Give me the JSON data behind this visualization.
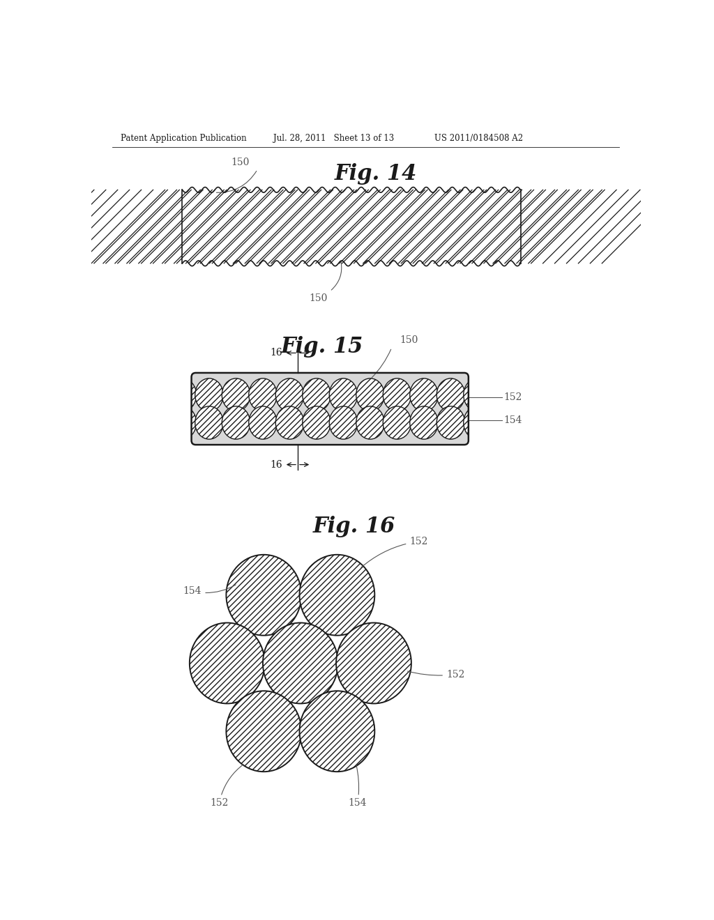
{
  "header_left": "Patent Application Publication",
  "header_mid": "Jul. 28, 2011   Sheet 13 of 13",
  "header_right": "US 2011/0184508 A2",
  "fig14_title": "Fig. 14",
  "fig15_title": "Fig. 15",
  "fig16_title": "Fig. 16",
  "bg_color": "#ffffff",
  "line_color": "#1a1a1a",
  "label_color": "#555555"
}
